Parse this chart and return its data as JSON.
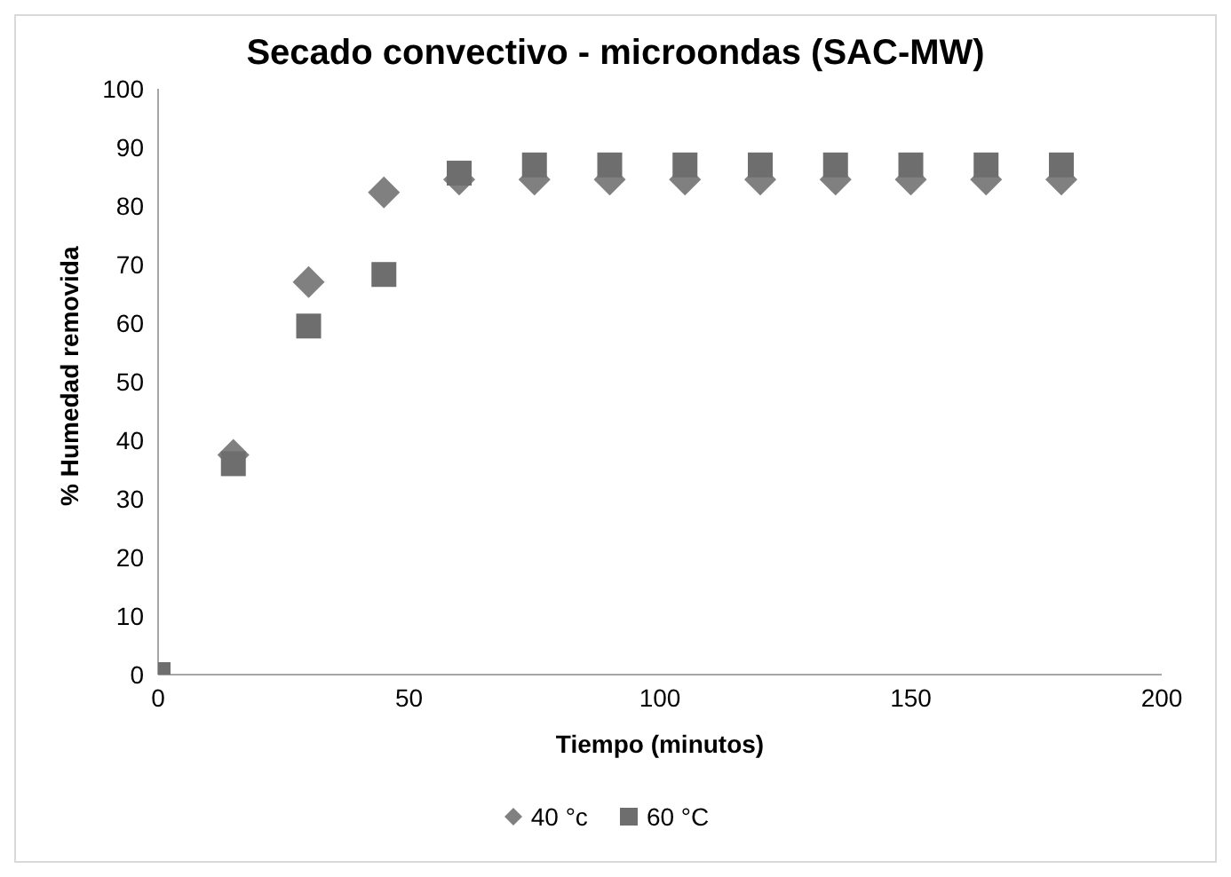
{
  "chart_data": {
    "type": "scatter",
    "title": "Secado convectivo - microondas (SAC-MW)",
    "xlabel": "Tiempo (minutos)",
    "ylabel": "% Humedad removida",
    "x": [
      0,
      15,
      30,
      45,
      60,
      75,
      90,
      105,
      120,
      135,
      150,
      165,
      180
    ],
    "series": [
      {
        "name": "40 °c",
        "color": "#808080",
        "marker": "diamond",
        "values": [
          null,
          37.5,
          67,
          82.3,
          84.5,
          84.5,
          84.5,
          84.5,
          84.5,
          84.5,
          84.5,
          84.5,
          84.5
        ]
      },
      {
        "name": "60 °C",
        "color": "#6e6e6e",
        "marker": "square",
        "values": [
          0,
          36,
          59.5,
          68.3,
          85.6,
          87,
          87,
          87,
          87,
          87,
          87,
          87,
          87
        ]
      }
    ],
    "xlim": [
      0,
      200
    ],
    "xticks": [
      0,
      50,
      100,
      150,
      200
    ],
    "ylim": [
      0,
      100
    ],
    "yticks": [
      0,
      10,
      20,
      30,
      40,
      50,
      60,
      70,
      80,
      90,
      100
    ],
    "grid": false,
    "legend": "bottom"
  }
}
